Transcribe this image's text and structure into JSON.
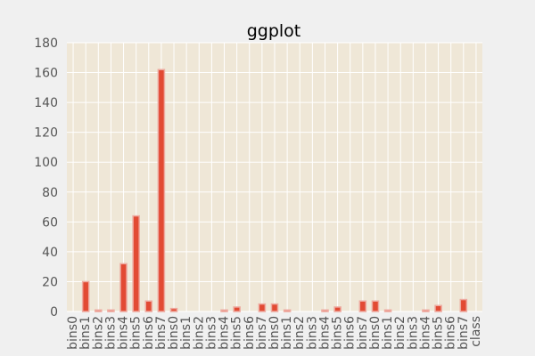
{
  "chart_data": {
    "type": "bar",
    "title": "ggplot",
    "xlabel": "",
    "ylabel": "",
    "ylim": [
      0,
      180
    ],
    "yticks": [
      0,
      20,
      40,
      60,
      80,
      100,
      120,
      140,
      160,
      180
    ],
    "grid": true,
    "categories": [
      "bins0",
      "bins1",
      "bins2",
      "bins3",
      "bins4",
      "bins5",
      "bins6",
      "bins7",
      "bins0",
      "bins1",
      "bins2",
      "bins3",
      "bins4",
      "bins5",
      "bins6",
      "bins7",
      "bins0",
      "bins1",
      "bins2",
      "bins3",
      "bins4",
      "bins5",
      "bins6",
      "bins7",
      "bins0",
      "bins1",
      "bins2",
      "bins3",
      "bins4",
      "bins5",
      "bins6",
      "bins7",
      "class"
    ],
    "values": [
      0,
      20,
      1,
      1,
      32,
      64,
      7,
      162,
      2,
      0,
      0,
      0,
      1,
      3,
      0,
      5,
      5,
      1,
      0,
      0,
      1,
      3,
      0,
      7,
      7,
      1,
      0,
      0,
      1,
      4,
      0,
      8,
      0
    ],
    "colors": {
      "bar": "#e24a33",
      "bar_edge": "#eeaaa0",
      "plot_bg": "#efe7d7",
      "grid": "#ffffff",
      "page_bg": "#f0f0f0",
      "tick_text": "#555555"
    }
  }
}
